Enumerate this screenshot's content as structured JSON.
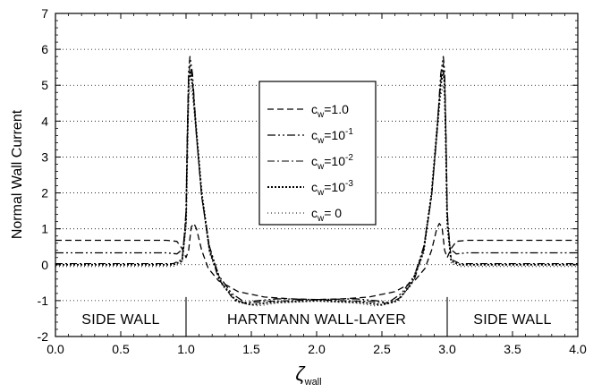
{
  "chart_data": {
    "type": "line",
    "xlabel_main": "ζ",
    "xlabel_sub": "wall",
    "ylabel": "Normal Wall  Current",
    "xlim": [
      0.0,
      4.0
    ],
    "ylim": [
      -2,
      7
    ],
    "x_ticks": [
      "0.0",
      "0.5",
      "1.0",
      "1.5",
      "2.0",
      "2.5",
      "3.0",
      "3.5",
      "4.0"
    ],
    "y_ticks": [
      "-2",
      "-1",
      "0",
      "1",
      "2",
      "3",
      "4",
      "5",
      "6",
      "7"
    ],
    "grid": "horizontal-dotted",
    "legend_position": "center-top",
    "region_dividers": [
      1.0,
      3.0
    ],
    "regions": [
      {
        "label": "SIDE WALL",
        "x": [
          0.0,
          1.0
        ]
      },
      {
        "label": "HARTMANN WALL-LAYER",
        "x": [
          1.0,
          3.0
        ]
      },
      {
        "label": "SIDE WALL",
        "x": [
          3.0,
          4.0
        ]
      }
    ],
    "series": [
      {
        "legend_main": "c",
        "legend_sub": "w",
        "legend_rest": "=1.0",
        "sup": "",
        "dash": "7,4",
        "width": 1.3,
        "points": [
          [
            0.0,
            0.68
          ],
          [
            0.85,
            0.68
          ],
          [
            0.93,
            0.65
          ],
          [
            0.97,
            0.45
          ],
          [
            1.0,
            0.2
          ],
          [
            1.02,
            0.4
          ],
          [
            1.04,
            1.05
          ],
          [
            1.06,
            1.15
          ],
          [
            1.08,
            1.0
          ],
          [
            1.12,
            0.4
          ],
          [
            1.17,
            -0.1
          ],
          [
            1.25,
            -0.45
          ],
          [
            1.4,
            -0.75
          ],
          [
            1.6,
            -0.9
          ],
          [
            1.8,
            -0.95
          ],
          [
            2.0,
            -0.97
          ],
          [
            2.2,
            -0.95
          ],
          [
            2.4,
            -0.9
          ],
          [
            2.6,
            -0.75
          ],
          [
            2.75,
            -0.45
          ],
          [
            2.83,
            -0.1
          ],
          [
            2.88,
            0.4
          ],
          [
            2.92,
            1.0
          ],
          [
            2.94,
            1.15
          ],
          [
            2.96,
            1.05
          ],
          [
            2.98,
            0.4
          ],
          [
            3.0,
            0.2
          ],
          [
            3.03,
            0.45
          ],
          [
            3.07,
            0.65
          ],
          [
            3.15,
            0.68
          ],
          [
            4.0,
            0.68
          ]
        ]
      },
      {
        "legend_main": "c",
        "legend_sub": "w",
        "legend_rest": "=10",
        "sup": "-1",
        "dash": "9,3,2,3,2,3",
        "width": 1.3,
        "points": [
          [
            0.0,
            0.33
          ],
          [
            0.85,
            0.33
          ],
          [
            0.93,
            0.3
          ],
          [
            0.98,
            0.45
          ],
          [
            1.0,
            1.5
          ],
          [
            1.01,
            3.8
          ],
          [
            1.02,
            5.4
          ],
          [
            1.03,
            5.8
          ],
          [
            1.05,
            5.3
          ],
          [
            1.08,
            3.6
          ],
          [
            1.12,
            1.9
          ],
          [
            1.18,
            0.5
          ],
          [
            1.25,
            -0.3
          ],
          [
            1.35,
            -0.8
          ],
          [
            1.45,
            -1.05
          ],
          [
            1.55,
            -1.0
          ],
          [
            1.7,
            -0.95
          ],
          [
            2.0,
            -0.97
          ],
          [
            2.3,
            -0.95
          ],
          [
            2.45,
            -1.0
          ],
          [
            2.55,
            -1.05
          ],
          [
            2.65,
            -0.8
          ],
          [
            2.75,
            -0.3
          ],
          [
            2.82,
            0.5
          ],
          [
            2.88,
            1.9
          ],
          [
            2.92,
            3.6
          ],
          [
            2.95,
            5.3
          ],
          [
            2.97,
            5.8
          ],
          [
            2.98,
            5.4
          ],
          [
            2.99,
            3.8
          ],
          [
            3.0,
            1.5
          ],
          [
            3.02,
            0.45
          ],
          [
            3.07,
            0.3
          ],
          [
            3.15,
            0.33
          ],
          [
            4.0,
            0.33
          ]
        ]
      },
      {
        "legend_main": "c",
        "legend_sub": "w",
        "legend_rest": "=10",
        "sup": "-2",
        "dash": "8,3,2,3",
        "width": 1.1,
        "points": [
          [
            0.0,
            0.03
          ],
          [
            0.9,
            0.03
          ],
          [
            0.97,
            0.15
          ],
          [
            1.0,
            1.4
          ],
          [
            1.01,
            3.6
          ],
          [
            1.02,
            5.2
          ],
          [
            1.03,
            5.6
          ],
          [
            1.05,
            5.1
          ],
          [
            1.08,
            3.6
          ],
          [
            1.12,
            1.9
          ],
          [
            1.18,
            0.4
          ],
          [
            1.25,
            -0.4
          ],
          [
            1.35,
            -0.9
          ],
          [
            1.45,
            -1.08
          ],
          [
            1.6,
            -1.02
          ],
          [
            2.0,
            -0.98
          ],
          [
            2.4,
            -1.02
          ],
          [
            2.55,
            -1.08
          ],
          [
            2.65,
            -0.9
          ],
          [
            2.75,
            -0.4
          ],
          [
            2.82,
            0.4
          ],
          [
            2.88,
            1.9
          ],
          [
            2.92,
            3.6
          ],
          [
            2.95,
            5.1
          ],
          [
            2.97,
            5.6
          ],
          [
            2.98,
            5.2
          ],
          [
            2.99,
            3.6
          ],
          [
            3.0,
            1.4
          ],
          [
            3.03,
            0.15
          ],
          [
            3.1,
            0.03
          ],
          [
            4.0,
            0.03
          ]
        ]
      },
      {
        "legend_main": "c",
        "legend_sub": "w",
        "legend_rest": "=10",
        "sup": "-3",
        "dash": "2,2",
        "width": 1.9,
        "points": [
          [
            0.0,
            0.0
          ],
          [
            0.9,
            0.0
          ],
          [
            0.97,
            0.1
          ],
          [
            1.0,
            1.2
          ],
          [
            1.01,
            3.4
          ],
          [
            1.02,
            5.0
          ],
          [
            1.03,
            5.4
          ],
          [
            1.05,
            5.0
          ],
          [
            1.08,
            3.7
          ],
          [
            1.12,
            2.0
          ],
          [
            1.18,
            0.4
          ],
          [
            1.27,
            -0.5
          ],
          [
            1.38,
            -1.0
          ],
          [
            1.5,
            -1.12
          ],
          [
            1.65,
            -1.05
          ],
          [
            2.0,
            -1.0
          ],
          [
            2.35,
            -1.05
          ],
          [
            2.5,
            -1.12
          ],
          [
            2.62,
            -1.0
          ],
          [
            2.73,
            -0.5
          ],
          [
            2.82,
            0.4
          ],
          [
            2.88,
            2.0
          ],
          [
            2.92,
            3.7
          ],
          [
            2.95,
            5.0
          ],
          [
            2.97,
            5.4
          ],
          [
            2.98,
            5.0
          ],
          [
            2.99,
            3.4
          ],
          [
            3.0,
            1.2
          ],
          [
            3.03,
            0.1
          ],
          [
            3.1,
            0.0
          ],
          [
            4.0,
            0.0
          ]
        ]
      },
      {
        "legend_main": "c",
        "legend_sub": "w",
        "legend_rest": "= 0",
        "sup": "",
        "dash": "1,3",
        "width": 1.0,
        "points": [
          [
            0.0,
            -0.05
          ],
          [
            0.9,
            -0.05
          ],
          [
            0.97,
            0.05
          ],
          [
            1.0,
            1.0
          ],
          [
            1.01,
            3.0
          ],
          [
            1.02,
            4.6
          ],
          [
            1.03,
            5.0
          ],
          [
            1.05,
            4.7
          ],
          [
            1.08,
            3.5
          ],
          [
            1.12,
            1.9
          ],
          [
            1.18,
            0.3
          ],
          [
            1.28,
            -0.6
          ],
          [
            1.4,
            -1.05
          ],
          [
            1.55,
            -1.15
          ],
          [
            1.7,
            -1.07
          ],
          [
            2.0,
            -1.02
          ],
          [
            2.3,
            -1.07
          ],
          [
            2.45,
            -1.15
          ],
          [
            2.6,
            -1.05
          ],
          [
            2.72,
            -0.6
          ],
          [
            2.82,
            0.3
          ],
          [
            2.88,
            1.9
          ],
          [
            2.92,
            3.5
          ],
          [
            2.95,
            4.7
          ],
          [
            2.97,
            5.0
          ],
          [
            2.98,
            4.6
          ],
          [
            2.99,
            3.0
          ],
          [
            3.0,
            1.0
          ],
          [
            3.03,
            0.05
          ],
          [
            3.1,
            -0.05
          ],
          [
            4.0,
            -0.05
          ]
        ]
      }
    ]
  }
}
